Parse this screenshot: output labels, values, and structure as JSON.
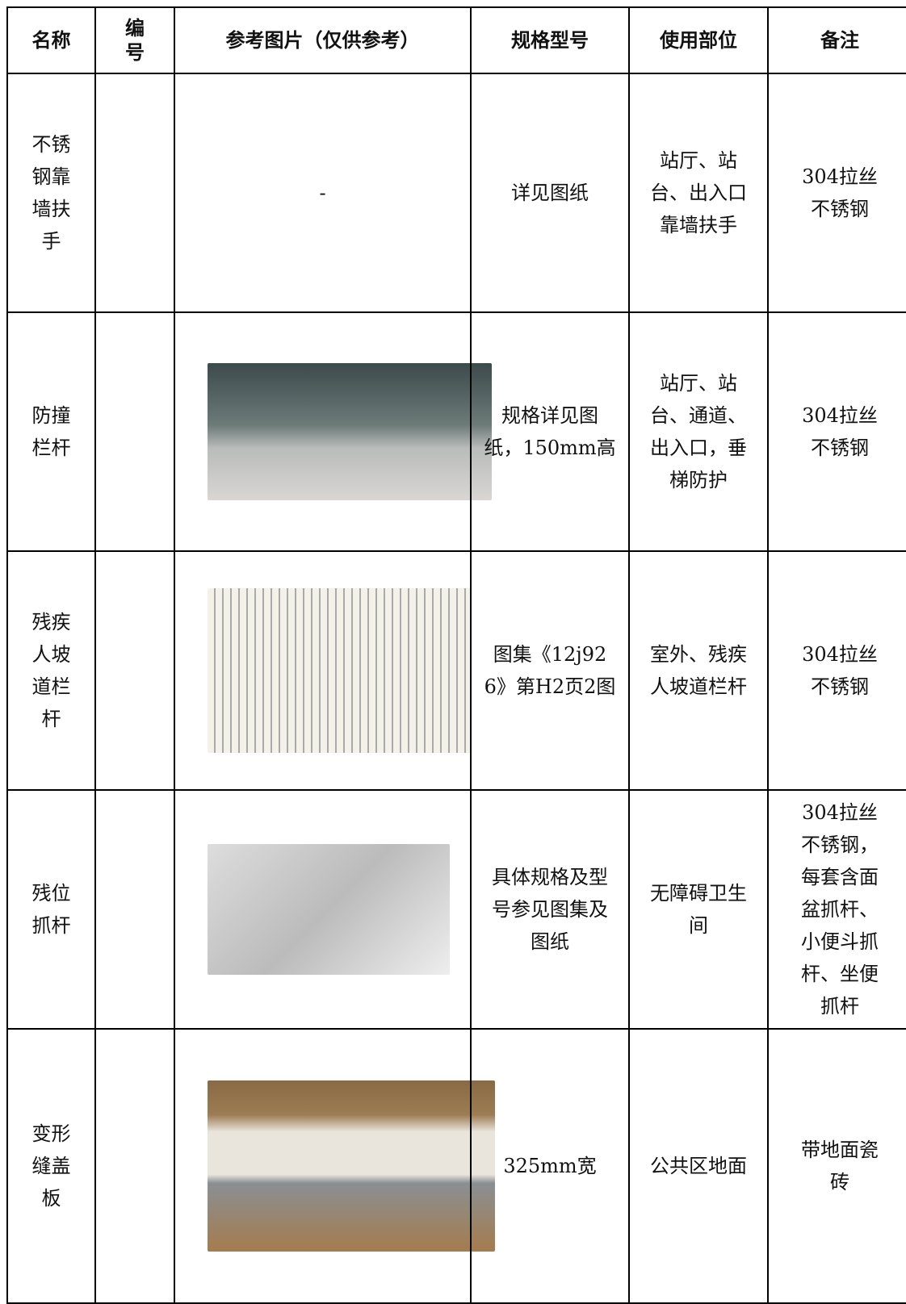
{
  "table": {
    "header": [
      "名称",
      "编号",
      "参考图片（仅供参考）",
      "规格型号",
      "使用部位",
      "备注"
    ],
    "rows": [
      {
        "name": "不锈钢靠墙扶手",
        "image": "-",
        "spec": "详见图纸",
        "location": "站厅、站台、出入口靠墙扶手",
        "note": "304拉丝不锈钢"
      },
      {
        "name": "防撞栏杆",
        "spec": "规格详见图纸，150mm高",
        "location": "站厅、站台、通道、出入口，垂梯防护",
        "note": "304拉丝不锈钢"
      },
      {
        "name": "残疾人坡道栏杆",
        "spec": "图集《12j926》第H2页2图",
        "location": "室外、残疾人坡道栏杆",
        "note": "304拉丝不锈钢"
      },
      {
        "name": "残位抓杆",
        "spec": "具体规格及型号参见图集及图纸",
        "location": "无障碍卫生间",
        "note": "304拉丝不锈钢，每套含面盆抓杆、小便斗抓杆、坐便抓杆"
      },
      {
        "name": "变形缝盖板",
        "spec": "325mm宽",
        "location": "公共区地面",
        "note": "带地面瓷砖"
      }
    ]
  }
}
